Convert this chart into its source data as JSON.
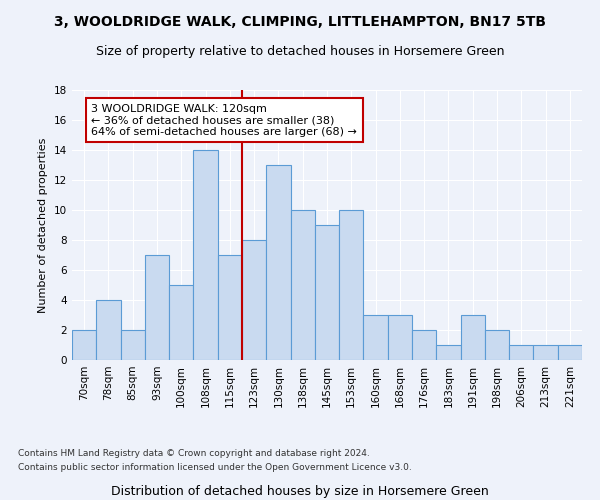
{
  "title1": "3, WOOLDRIDGE WALK, CLIMPING, LITTLEHAMPTON, BN17 5TB",
  "title2": "Size of property relative to detached houses in Horsemere Green",
  "xlabel": "Distribution of detached houses by size in Horsemere Green",
  "ylabel": "Number of detached properties",
  "footnote1": "Contains HM Land Registry data © Crown copyright and database right 2024.",
  "footnote2": "Contains public sector information licensed under the Open Government Licence v3.0.",
  "bar_labels": [
    "70sqm",
    "78sqm",
    "85sqm",
    "93sqm",
    "100sqm",
    "108sqm",
    "115sqm",
    "123sqm",
    "130sqm",
    "138sqm",
    "145sqm",
    "153sqm",
    "160sqm",
    "168sqm",
    "176sqm",
    "183sqm",
    "191sqm",
    "198sqm",
    "206sqm",
    "213sqm",
    "221sqm"
  ],
  "bar_values": [
    2,
    4,
    2,
    7,
    5,
    14,
    7,
    8,
    13,
    10,
    9,
    10,
    3,
    3,
    2,
    1,
    3,
    2,
    1,
    1,
    1
  ],
  "bar_color": "#c9daf0",
  "bar_edge_color": "#5b9bd5",
  "vline_x": 6.5,
  "vline_color": "#c00000",
  "annotation_line1": "3 WOOLDRIDGE WALK: 120sqm",
  "annotation_line2": "← 36% of detached houses are smaller (38)",
  "annotation_line3": "64% of semi-detached houses are larger (68) →",
  "annotation_box_color": "#ffffff",
  "annotation_box_edge_color": "#c00000",
  "ylim": [
    0,
    18
  ],
  "yticks": [
    0,
    2,
    4,
    6,
    8,
    10,
    12,
    14,
    16,
    18
  ],
  "bg_color": "#eef2fa",
  "axes_bg_color": "#eef2fa",
  "title1_fontsize": 10,
  "title2_fontsize": 9,
  "xlabel_fontsize": 9,
  "ylabel_fontsize": 8,
  "tick_fontsize": 7.5,
  "annotation_fontsize": 8,
  "footnote_fontsize": 6.5
}
